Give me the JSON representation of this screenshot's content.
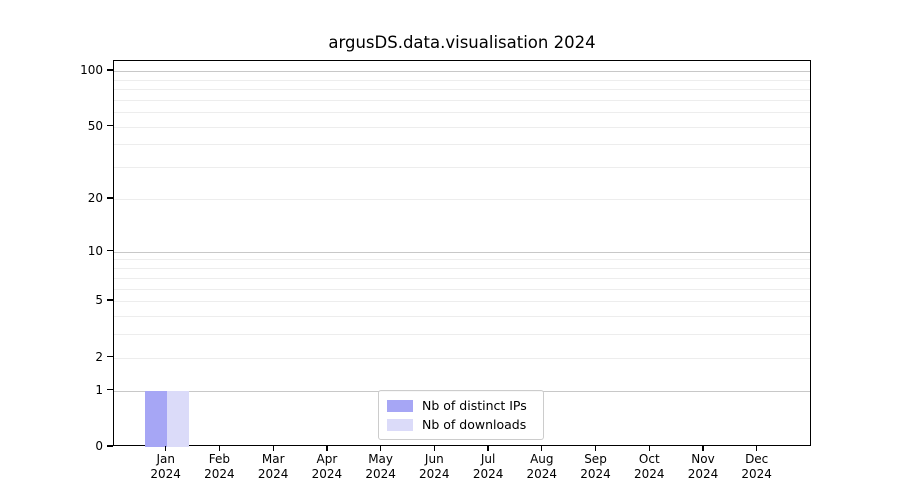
{
  "title": "argusDS.data.visualisation 2024",
  "chart_data": {
    "type": "bar",
    "title": "argusDS.data.visualisation 2024",
    "x_tick_labels": [
      {
        "month": "Jan",
        "year": "2024"
      },
      {
        "month": "Feb",
        "year": "2024"
      },
      {
        "month": "Mar",
        "year": "2024"
      },
      {
        "month": "Apr",
        "year": "2024"
      },
      {
        "month": "May",
        "year": "2024"
      },
      {
        "month": "Jun",
        "year": "2024"
      },
      {
        "month": "Jul",
        "year": "2024"
      },
      {
        "month": "Aug",
        "year": "2024"
      },
      {
        "month": "Sep",
        "year": "2024"
      },
      {
        "month": "Oct",
        "year": "2024"
      },
      {
        "month": "Nov",
        "year": "2024"
      },
      {
        "month": "Dec",
        "year": "2024"
      }
    ],
    "series": [
      {
        "name": "Nb of distinct IPs",
        "color": "#a6a6f5",
        "values": [
          1,
          0,
          0,
          0,
          0,
          0,
          0,
          0,
          0,
          0,
          0,
          0
        ]
      },
      {
        "name": "Nb of downloads",
        "color": "#dbdbf9",
        "values": [
          1,
          0,
          0,
          0,
          0,
          0,
          0,
          0,
          0,
          0,
          0,
          0
        ]
      }
    ],
    "yscale": "symlog",
    "ylim": [
      0,
      118
    ],
    "yticks": [
      0,
      1,
      2,
      5,
      10,
      20,
      50,
      100
    ],
    "gridlines": {
      "major": [
        1,
        10,
        100
      ],
      "minor": [
        2,
        3,
        4,
        5,
        6,
        7,
        8,
        9,
        20,
        30,
        40,
        50,
        60,
        70,
        80,
        90
      ]
    },
    "legend": {
      "position": "lower-center"
    },
    "colors": {
      "major_grid": "#c8c8c8",
      "minor_grid": "#ededed",
      "axis": "#000000",
      "background": "#ffffff"
    }
  }
}
